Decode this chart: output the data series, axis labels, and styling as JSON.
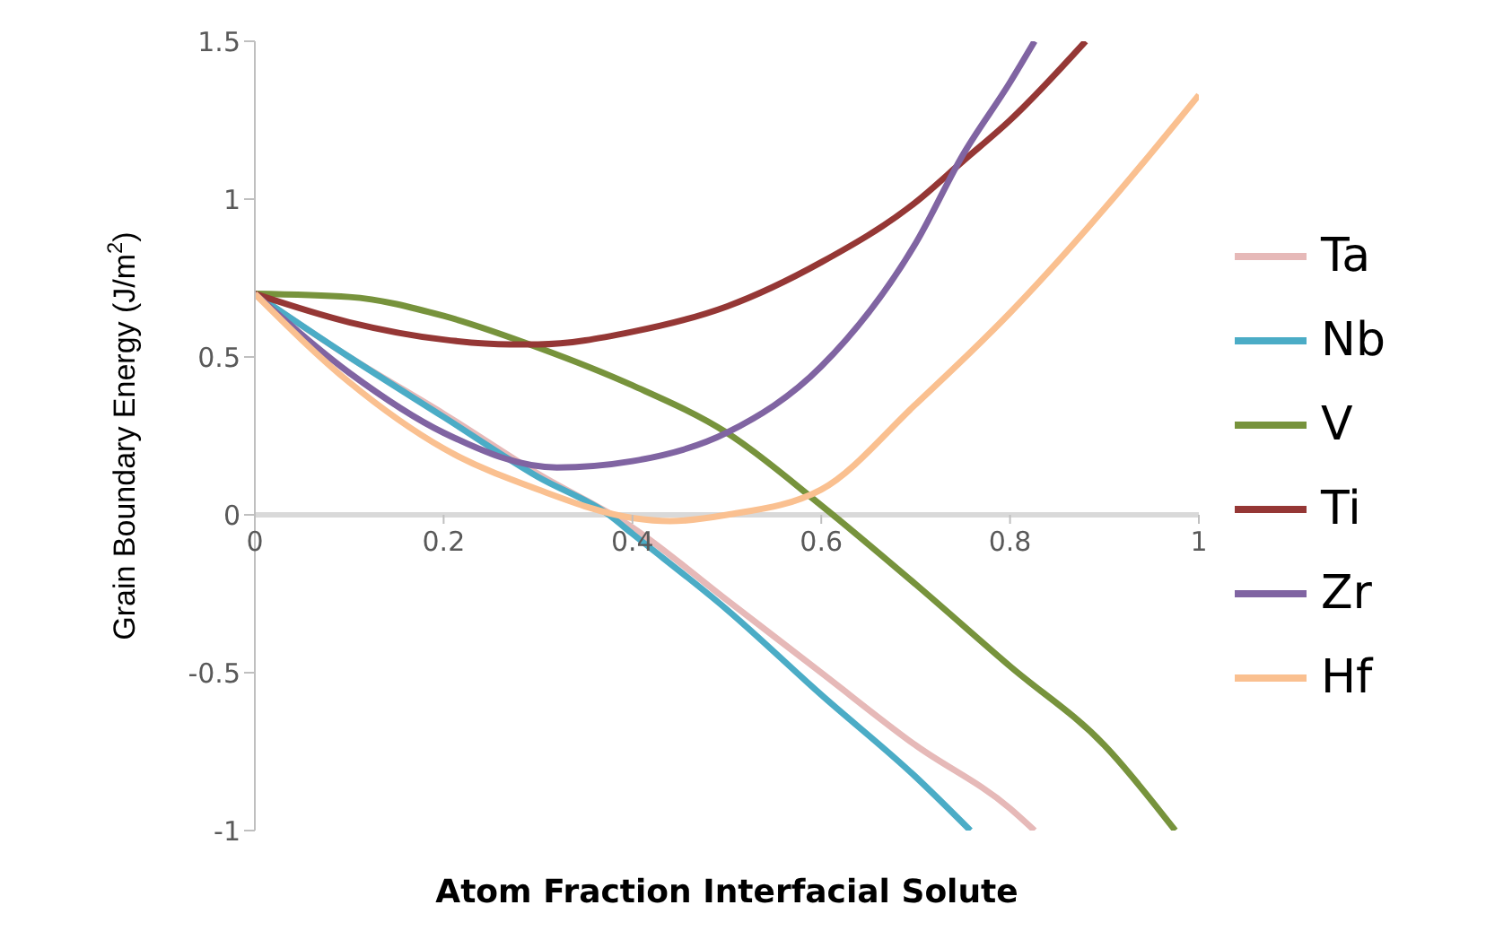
{
  "chart_data": {
    "type": "line",
    "xlabel": "Atom Fraction  Interfacial Solute",
    "ylabel": "Grain Boundary Energy (J/m$^{2}$)",
    "xlim": [
      0,
      1
    ],
    "ylim": [
      -1,
      1.5
    ],
    "xticks": [
      0,
      0.2,
      0.4,
      0.6,
      0.8,
      1
    ],
    "yticks": [
      -1,
      -0.5,
      0,
      0.5,
      1,
      1.5
    ],
    "grid": false,
    "legend": "right",
    "marker": "none",
    "line_style": "solid",
    "series": [
      {
        "name": "Ta",
        "color": "#e6b9b8",
        "x": [
          0,
          0.1,
          0.2,
          0.3,
          0.4,
          0.5,
          0.6,
          0.7,
          0.8,
          0.826
        ],
        "values": [
          0.7,
          0.5,
          0.32,
          0.13,
          -0.04,
          -0.27,
          -0.5,
          -0.73,
          -0.93,
          -1
        ]
      },
      {
        "name": "Nb",
        "color": "#4bacc6",
        "x": [
          0,
          0.1,
          0.2,
          0.3,
          0.375,
          0.4,
          0.5,
          0.6,
          0.7,
          0.758
        ],
        "values": [
          0.7,
          0.5,
          0.31,
          0.12,
          0,
          -0.06,
          -0.3,
          -0.57,
          -0.83,
          -1
        ]
      },
      {
        "name": "V",
        "color": "#77933c",
        "x": [
          0,
          0.1,
          0.2,
          0.3,
          0.4,
          0.5,
          0.6,
          0.7,
          0.8,
          0.9,
          0.975
        ],
        "values": [
          0.7,
          0.69,
          0.63,
          0.53,
          0.41,
          0.26,
          0.03,
          -0.22,
          -0.48,
          -0.73,
          -1
        ]
      },
      {
        "name": "Ti",
        "color": "#953735",
        "x": [
          0,
          0.1,
          0.2,
          0.27,
          0.3,
          0.4,
          0.5,
          0.6,
          0.7,
          0.75,
          0.8,
          0.88
        ],
        "values": [
          0.7,
          0.61,
          0.555,
          0.54,
          0.54,
          0.58,
          0.66,
          0.8,
          0.99,
          1.12,
          1.25,
          1.5
        ]
      },
      {
        "name": "Zr",
        "color": "#8064a2",
        "x": [
          0,
          0.1,
          0.2,
          0.32,
          0.4,
          0.5,
          0.6,
          0.7,
          0.75,
          0.8,
          0.826
        ],
        "values": [
          0.7,
          0.45,
          0.26,
          0.15,
          0.17,
          0.26,
          0.47,
          0.86,
          1.14,
          1.37,
          1.5
        ]
      },
      {
        "name": "Hf",
        "color": "#fac090",
        "x": [
          0,
          0.1,
          0.2,
          0.3,
          0.4,
          0.44,
          0.5,
          0.6,
          0.7,
          0.8,
          0.9,
          1
        ],
        "values": [
          0.7,
          0.42,
          0.21,
          0.08,
          -0.01,
          -0.02,
          0,
          0.08,
          0.35,
          0.64,
          0.97,
          1.33
        ]
      }
    ]
  }
}
